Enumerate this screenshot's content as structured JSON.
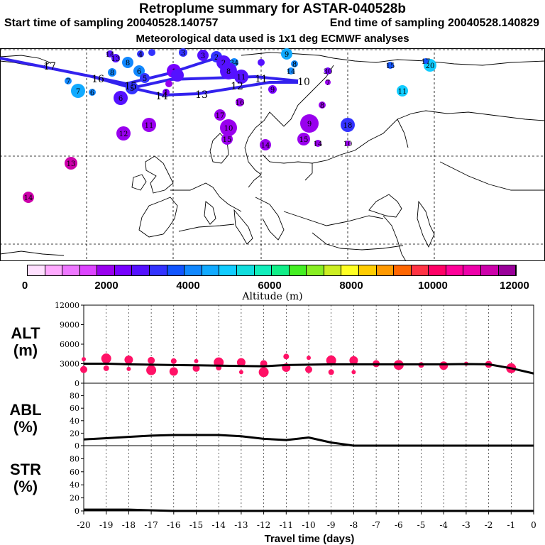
{
  "header": {
    "title": "Retroplume summary for ASTAR-040528b",
    "start_label": "Start time of sampling 20040528.140757",
    "end_label": "End time of sampling 20040528.140829",
    "met_label": "Meteorological data used is 1x1 deg ECMWF analyses"
  },
  "colorbar": {
    "title": "Altitude (m)",
    "tick_labels": [
      "0",
      "2000",
      "4000",
      "6000",
      "8000",
      "10000",
      "12000"
    ],
    "colors": [
      "#ffe0ff",
      "#ffaaff",
      "#ee77ff",
      "#dd44ff",
      "#9900ee",
      "#7700ff",
      "#5511ff",
      "#3333ff",
      "#1155ff",
      "#1188ff",
      "#11aaff",
      "#11ccff",
      "#11dddd",
      "#11eebb",
      "#11ee88",
      "#44ee22",
      "#88ee22",
      "#ccee22",
      "#ffff22",
      "#ffcc00",
      "#ff9900",
      "#ff6600",
      "#ff3344",
      "#ff0066",
      "#ff0099",
      "#ee00aa",
      "#cc00aa",
      "#990099"
    ]
  },
  "panels": {
    "alt": {
      "label_line1": "ALT",
      "label_line2": "(m)",
      "ticks": [
        "12000",
        "9000",
        "6000",
        "3000",
        "0"
      ]
    },
    "abl": {
      "label_line1": "ABL",
      "label_line2": "(%)",
      "ticks": [
        "80",
        "60",
        "40",
        "20",
        "0"
      ]
    },
    "str": {
      "label_line1": "STR",
      "label_line2": "(%)",
      "ticks": [
        "80",
        "60",
        "40",
        "20",
        "0"
      ]
    }
  },
  "xaxis": {
    "title": "Travel time (days)",
    "ticks": [
      "-20",
      "-19",
      "-18",
      "-17",
      "-16",
      "-15",
      "-14",
      "-13",
      "-12",
      "-11",
      "-10",
      "-9",
      "-8",
      "-7",
      "-6",
      "-5",
      "-4",
      "-3",
      "-2",
      "-1",
      "0"
    ]
  },
  "map_labels": {
    "track_numbers": [
      "17",
      "16",
      "15",
      "14",
      "13",
      "12",
      "11",
      "10"
    ],
    "cluster_numbers": [
      "14",
      "13",
      "12",
      "11",
      "9",
      "8",
      "7",
      "6",
      "5",
      "4",
      "3",
      "2",
      "1",
      "11",
      "10",
      "17"
    ]
  },
  "chart_data": [
    {
      "type": "line",
      "title": "ALT (m)",
      "xlabel": "Travel time (days)",
      "ylabel": "Altitude (m)",
      "x": [
        -20,
        -19,
        -18,
        -17,
        -16,
        -15,
        -14,
        -13,
        -12,
        -11,
        -10,
        -9,
        -8,
        -7,
        -6,
        -5,
        -4,
        -3,
        -2,
        -1,
        0
      ],
      "values": [
        3000,
        3000,
        2900,
        2850,
        2800,
        2750,
        2700,
        2650,
        2600,
        2800,
        2850,
        2900,
        2900,
        2900,
        2900,
        2900,
        2900,
        2950,
        2900,
        2300,
        1500
      ],
      "ylim": [
        0,
        12000
      ],
      "cluster_points": {
        "x": [
          -20,
          -20,
          -19,
          -19,
          -18,
          -18,
          -17,
          -17,
          -16,
          -16,
          -15,
          -15,
          -14,
          -14,
          -13,
          -13,
          -12,
          -12,
          -11,
          -11,
          -10,
          -10,
          -9,
          -9,
          -8,
          -8,
          -7,
          -6,
          -5,
          -4,
          -3,
          -2,
          -1
        ],
        "y": [
          3700,
          2100,
          3800,
          2300,
          3600,
          2200,
          3500,
          2000,
          3400,
          1800,
          3400,
          2300,
          3200,
          2400,
          3200,
          1700,
          3000,
          1700,
          4100,
          2400,
          3900,
          2100,
          3500,
          1700,
          3500,
          1700,
          3000,
          2800,
          2800,
          2700,
          3000,
          2900,
          2300
        ]
      }
    },
    {
      "type": "line",
      "title": "ABL (%)",
      "xlabel": "Travel time (days)",
      "ylabel": "ABL (%)",
      "x": [
        -20,
        -19,
        -18,
        -17,
        -16,
        -15,
        -14,
        -13,
        -12,
        -11,
        -10,
        -9,
        -8,
        -7,
        -6,
        -5,
        -4,
        -3,
        -2,
        -1,
        0
      ],
      "values": [
        10,
        12,
        14,
        16,
        17,
        17,
        17,
        15,
        11,
        9,
        13,
        5,
        0,
        0,
        0,
        0,
        0,
        0,
        0,
        0,
        0
      ],
      "ylim": [
        0,
        100
      ]
    },
    {
      "type": "line",
      "title": "STR (%)",
      "xlabel": "Travel time (days)",
      "ylabel": "STR (%)",
      "x": [
        -20,
        -19,
        -18,
        -17,
        -16,
        -15,
        -14,
        -13,
        -12,
        -11,
        -10,
        -9,
        -8,
        -7,
        -6,
        -5,
        -4,
        -3,
        -2,
        -1,
        0
      ],
      "values": [
        2,
        2,
        2,
        1,
        0,
        0,
        0,
        0,
        0,
        0,
        0,
        0,
        0,
        0,
        0,
        0,
        0,
        0,
        0,
        0,
        0
      ],
      "ylim": [
        0,
        100
      ]
    }
  ]
}
